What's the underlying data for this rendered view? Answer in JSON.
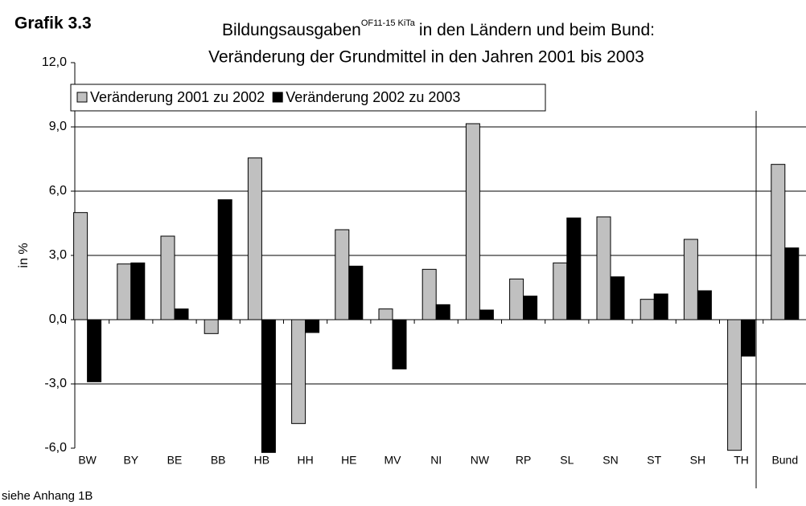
{
  "chart_data": {
    "type": "bar",
    "label": "Grafik 3.3",
    "title": [
      "Bildungsausgaben",
      "OF11-15 KiTa",
      "in den Ländern und beim Bund:",
      "Veränderung der Grundmittel in den Jahren 2001 bis 2003"
    ],
    "y_label": "in %",
    "footnote": "siehe Anhang 1B",
    "categories": [
      "BW",
      "BY",
      "BE",
      "BB",
      "HB",
      "HH",
      "HE",
      "MV",
      "NI",
      "NW",
      "RP",
      "SL",
      "SN",
      "ST",
      "SH",
      "TH",
      "Bund"
    ],
    "series": [
      {
        "name": "Veränderung 2001 zu 2002",
        "color": "#c0c0c0",
        "values": [
          5.0,
          2.6,
          3.9,
          -0.65,
          7.55,
          -4.85,
          4.2,
          0.5,
          2.35,
          9.15,
          1.9,
          2.65,
          4.8,
          0.95,
          3.75,
          -6.1,
          7.25
        ]
      },
      {
        "name": "Veränderung 2002 zu 2003",
        "color": "#000000",
        "values": [
          -2.9,
          2.65,
          0.5,
          5.6,
          -6.2,
          -0.6,
          2.5,
          -2.3,
          0.7,
          0.45,
          1.1,
          4.75,
          2.0,
          1.2,
          1.35,
          -1.7,
          3.35
        ]
      }
    ],
    "ylim": [
      -6,
      12
    ],
    "yticks": [
      {
        "value": -6,
        "label": "-6,0"
      },
      {
        "value": -3,
        "label": "-3,0"
      },
      {
        "value": 0,
        "label": "0,0"
      },
      {
        "value": 3,
        "label": "3,0"
      },
      {
        "value": 6,
        "label": "6,0"
      },
      {
        "value": 9,
        "label": "9,0"
      },
      {
        "value": 12,
        "label": "12,0"
      }
    ],
    "grid": true,
    "legend": "top-left"
  }
}
